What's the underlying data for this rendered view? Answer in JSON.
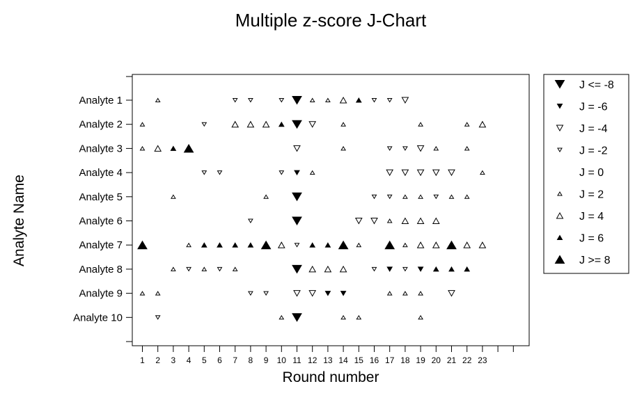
{
  "chart_data": {
    "type": "scatter",
    "title": "Multiple z-score J-Chart",
    "xlabel": "Round number",
    "ylabel": "Analyte Name",
    "x_ticks": [
      1,
      2,
      3,
      4,
      5,
      6,
      7,
      8,
      9,
      10,
      11,
      12,
      13,
      14,
      15,
      16,
      17,
      18,
      19,
      20,
      21,
      22,
      23
    ],
    "xlim": [
      0,
      25.5
    ],
    "categories": [
      "Analyte 1",
      "Analyte 2",
      "Analyte 3",
      "Analyte 4",
      "Analyte 5",
      "Analyte 6",
      "Analyte 7",
      "Analyte 8",
      "Analyte 9",
      "Analyte 10"
    ],
    "grid": false,
    "legend_position": "right",
    "legend": [
      {
        "label": "J <= -8",
        "j": -8
      },
      {
        "label": "J = -6",
        "j": -6
      },
      {
        "label": "J = -4",
        "j": -4
      },
      {
        "label": "J = -2",
        "j": -2
      },
      {
        "label": "J = 0",
        "j": 0
      },
      {
        "label": "J = 2",
        "j": 2
      },
      {
        "label": "J = 4",
        "j": 4
      },
      {
        "label": "J = 6",
        "j": 6
      },
      {
        "label": "J >= 8",
        "j": 8
      }
    ],
    "points": [
      {
        "analyte": "Analyte 1",
        "x": [
          2,
          7,
          8,
          10,
          11,
          12,
          13,
          14,
          15,
          16,
          17,
          18
        ],
        "j": [
          2,
          -2,
          -2,
          -2,
          -8,
          2,
          2,
          4,
          6,
          -2,
          -2,
          -4
        ]
      },
      {
        "analyte": "Analyte 2",
        "x": [
          1,
          5,
          7,
          8,
          9,
          10,
          11,
          12,
          14,
          19,
          22,
          23
        ],
        "j": [
          2,
          -2,
          4,
          4,
          4,
          6,
          -8,
          -4,
          2,
          2,
          2,
          4
        ]
      },
      {
        "analyte": "Analyte 3",
        "x": [
          1,
          2,
          3,
          4,
          11,
          14,
          17,
          18,
          19,
          20,
          22
        ],
        "j": [
          2,
          4,
          6,
          8,
          -4,
          2,
          -2,
          -2,
          -4,
          2,
          2
        ]
      },
      {
        "analyte": "Analyte 4",
        "x": [
          5,
          6,
          10,
          11,
          12,
          17,
          18,
          19,
          20,
          21,
          23
        ],
        "j": [
          -2,
          -2,
          -2,
          -6,
          2,
          -4,
          -4,
          -4,
          -4,
          -4,
          2
        ]
      },
      {
        "analyte": "Analyte 5",
        "x": [
          3,
          9,
          11,
          16,
          17,
          18,
          19,
          20,
          21,
          22
        ],
        "j": [
          2,
          2,
          -8,
          -2,
          -2,
          2,
          2,
          -2,
          2,
          2
        ]
      },
      {
        "analyte": "Analyte 6",
        "x": [
          8,
          11,
          15,
          16,
          17,
          18,
          19,
          20
        ],
        "j": [
          -2,
          -8,
          -4,
          -4,
          2,
          4,
          4,
          4
        ]
      },
      {
        "analyte": "Analyte 7",
        "x": [
          1,
          4,
          5,
          6,
          7,
          8,
          9,
          10,
          11,
          12,
          13,
          14,
          15,
          17,
          18,
          19,
          20,
          21,
          22,
          23
        ],
        "j": [
          8,
          2,
          6,
          6,
          6,
          6,
          8,
          4,
          -2,
          6,
          6,
          8,
          2,
          8,
          2,
          4,
          4,
          8,
          4,
          4
        ]
      },
      {
        "analyte": "Analyte 8",
        "x": [
          3,
          4,
          5,
          6,
          7,
          11,
          12,
          13,
          14,
          16,
          17,
          18,
          19,
          20,
          21,
          22
        ],
        "j": [
          2,
          -2,
          2,
          -2,
          2,
          -8,
          4,
          4,
          4,
          -2,
          -6,
          -2,
          -6,
          6,
          6,
          6
        ]
      },
      {
        "analyte": "Analyte 9",
        "x": [
          1,
          2,
          8,
          9,
          11,
          12,
          13,
          14,
          17,
          18,
          19,
          21
        ],
        "j": [
          2,
          2,
          -2,
          -2,
          -4,
          -4,
          -6,
          -6,
          2,
          2,
          2,
          -4
        ]
      },
      {
        "analyte": "Analyte 10",
        "x": [
          2,
          10,
          11,
          14,
          15,
          19
        ],
        "j": [
          -2,
          2,
          -8,
          2,
          2,
          2
        ]
      }
    ]
  }
}
